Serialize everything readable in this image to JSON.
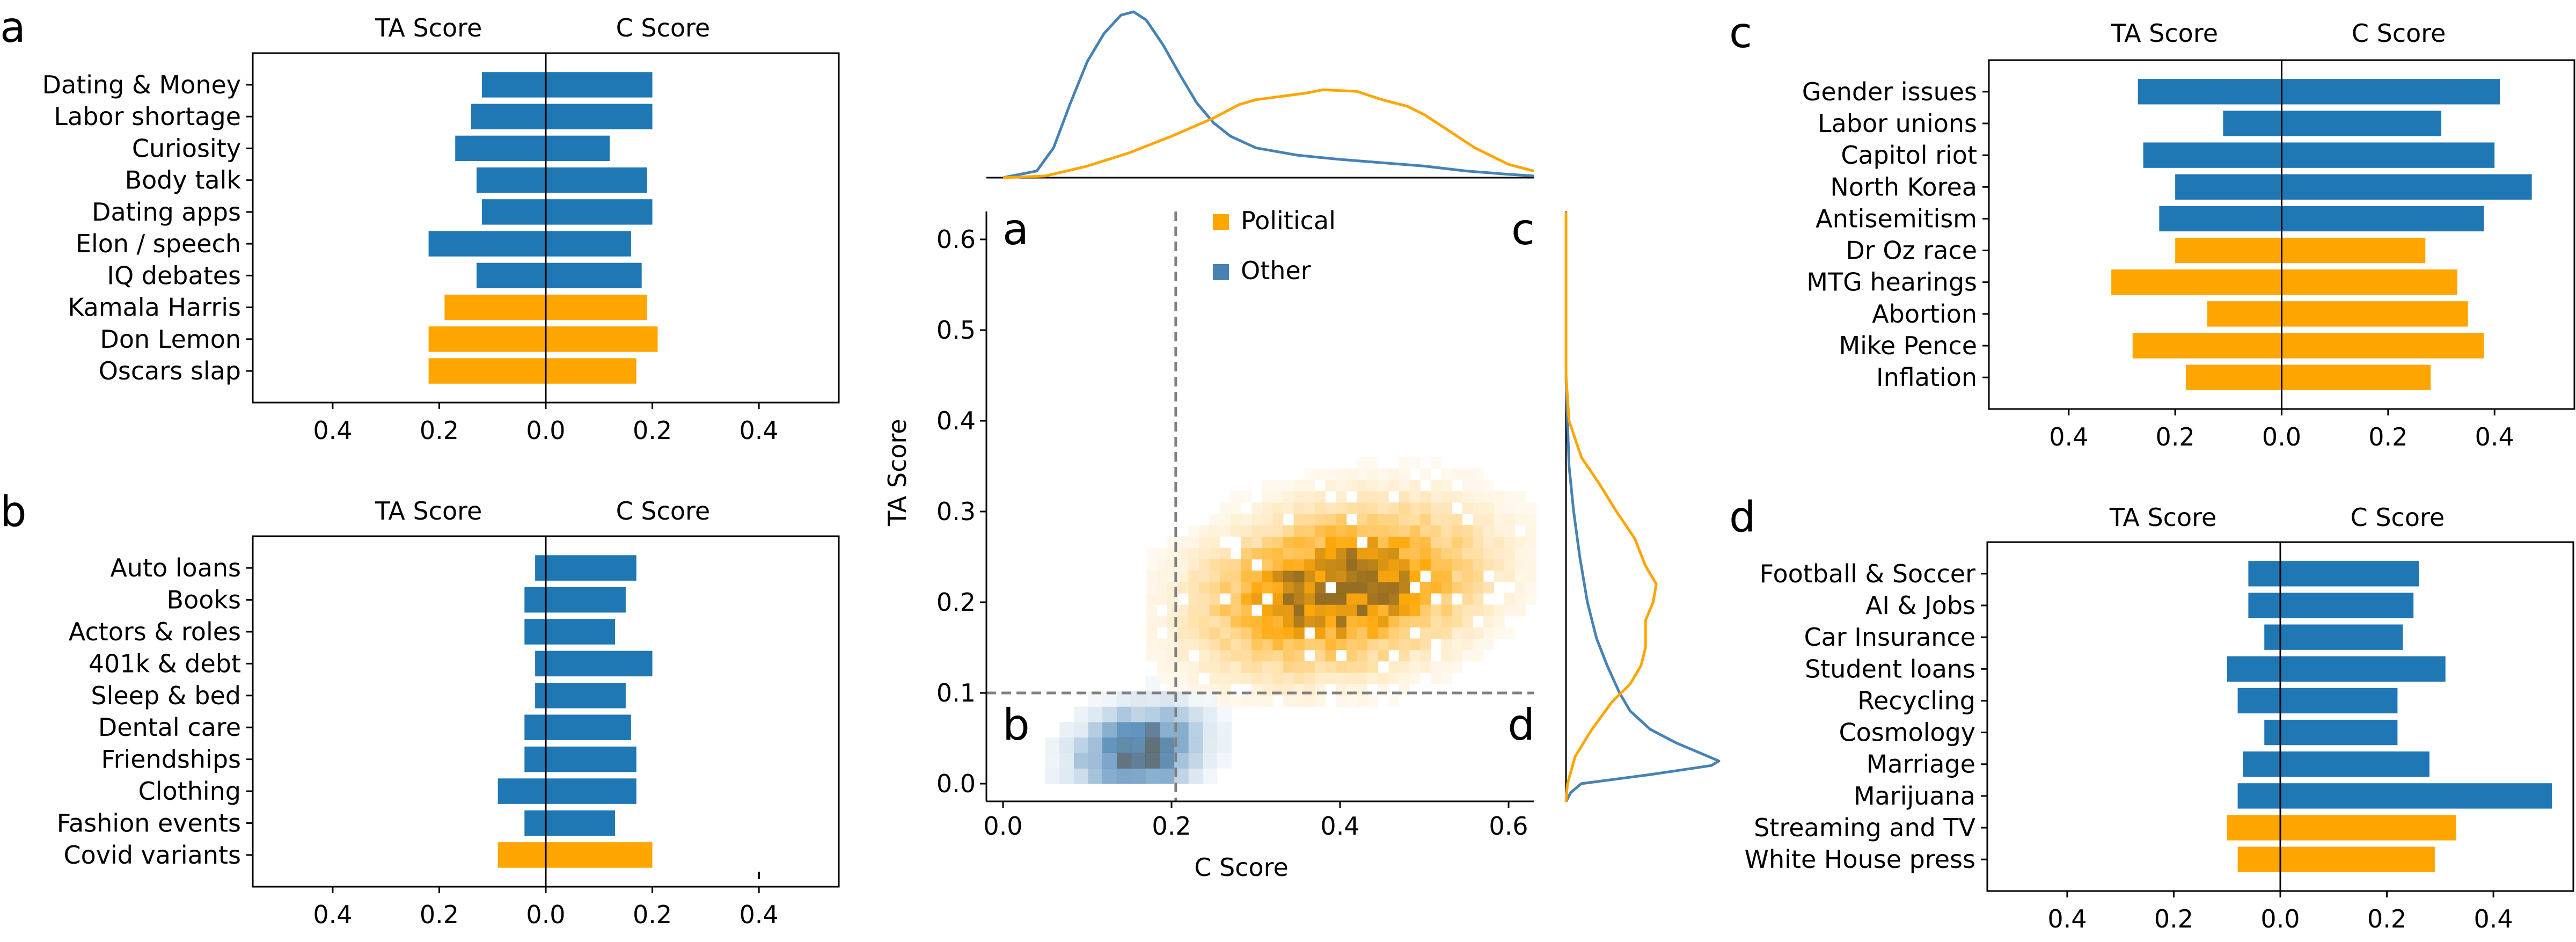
{
  "colors": {
    "political": "#FFA500",
    "other_bar": "#1F77B4",
    "other_kde": "#4682B4",
    "political_kde": "#FFA500",
    "reference_line": "#808080"
  },
  "chart_data": [
    {
      "id": "a",
      "type": "bar",
      "panel_letter": "a",
      "orientation": "horizontal-diverging",
      "left_title": "TA Score",
      "right_title": "C Score",
      "xlim": [
        -0.55,
        0.55
      ],
      "xticks": [
        -0.4,
        -0.2,
        0.0,
        0.2,
        0.4
      ],
      "xtick_labels": [
        "0.4",
        "0.2",
        "0.0",
        "0.2",
        "0.4"
      ],
      "categories": [
        "Dating & Money",
        "Labor shortage",
        "Curiosity",
        "Body talk",
        "Dating apps",
        "Elon / speech",
        "IQ debates",
        "Kamala Harris",
        "Don Lemon",
        "Oscars slap"
      ],
      "group": [
        "Other",
        "Other",
        "Other",
        "Other",
        "Other",
        "Other",
        "Other",
        "Political",
        "Political",
        "Political"
      ],
      "series": [
        {
          "name": "TA Score",
          "values": [
            0.12,
            0.14,
            0.17,
            0.13,
            0.12,
            0.22,
            0.13,
            0.19,
            0.22,
            0.22
          ]
        },
        {
          "name": "C Score",
          "values": [
            0.2,
            0.2,
            0.12,
            0.19,
            0.2,
            0.16,
            0.18,
            0.19,
            0.21,
            0.17
          ]
        }
      ]
    },
    {
      "id": "b",
      "type": "bar",
      "panel_letter": "b",
      "orientation": "horizontal-diverging",
      "left_title": "TA Score",
      "right_title": "C Score",
      "xlim": [
        -0.55,
        0.55
      ],
      "xticks": [
        -0.4,
        -0.2,
        0.0,
        0.2,
        0.4
      ],
      "xtick_labels": [
        "0.4",
        "0.2",
        "0.0",
        "0.2",
        "0.4"
      ],
      "categories": [
        "Auto loans",
        "Books",
        "Actors & roles",
        "401k & debt",
        "Sleep & bed",
        "Dental care",
        "Friendships",
        "Clothing",
        "Fashion events",
        "Covid variants"
      ],
      "group": [
        "Other",
        "Other",
        "Other",
        "Other",
        "Other",
        "Other",
        "Other",
        "Other",
        "Other",
        "Political"
      ],
      "series": [
        {
          "name": "TA Score",
          "values": [
            0.02,
            0.04,
            0.04,
            0.02,
            0.02,
            0.04,
            0.04,
            0.09,
            0.04,
            0.09
          ]
        },
        {
          "name": "C Score",
          "values": [
            0.17,
            0.15,
            0.13,
            0.2,
            0.15,
            0.16,
            0.17,
            0.17,
            0.13,
            0.2
          ]
        }
      ],
      "stray_tick_at": 0.4
    },
    {
      "id": "center",
      "type": "heatmap",
      "xlabel": "C Score",
      "ylabel": "TA Score",
      "xlim": [
        -0.02,
        0.63
      ],
      "ylim": [
        -0.02,
        0.63
      ],
      "xticks": [
        0.0,
        0.2,
        0.4,
        0.6
      ],
      "xtick_labels": [
        "0.0",
        "0.2",
        "0.4",
        "0.6"
      ],
      "yticks": [
        0.0,
        0.1,
        0.2,
        0.3,
        0.4,
        0.5,
        0.6
      ],
      "ytick_labels": [
        "0.0",
        "0.1",
        "0.2",
        "0.3",
        "0.4",
        "0.5",
        "0.6"
      ],
      "thresholds": {
        "c_score": 0.205,
        "ta_score": 0.1
      },
      "quadrant_labels": {
        "top_left": "a",
        "bottom_left": "b",
        "top_right": "c",
        "bottom_right": "d"
      },
      "legend": {
        "placement": "top-center",
        "entries": [
          {
            "label": "Political",
            "group": "Political"
          },
          {
            "label": "Other",
            "group": "Other"
          }
        ]
      },
      "distributions": [
        {
          "name": "Political",
          "c_mean": 0.4,
          "c_sd": 0.1,
          "ta_mean": 0.215,
          "ta_sd": 0.055,
          "correlation": 0.25,
          "c_range": [
            0.17,
            0.62
          ],
          "ta_range": [
            0.085,
            0.37
          ]
        },
        {
          "name": "Other",
          "c_mean": 0.16,
          "c_sd": 0.045,
          "ta_mean": 0.035,
          "ta_sd": 0.03,
          "correlation": 0.2,
          "c_range": [
            0.05,
            0.36
          ],
          "ta_range": [
            0.0,
            0.2
          ]
        }
      ],
      "marginal_top": {
        "axis": "C Score",
        "series": [
          {
            "name": "Other",
            "x": [
              0.0,
              0.04,
              0.06,
              0.08,
              0.1,
              0.12,
              0.14,
              0.155,
              0.17,
              0.19,
              0.21,
              0.23,
              0.25,
              0.27,
              0.3,
              0.35,
              0.4,
              0.45,
              0.5,
              0.55,
              0.6,
              0.63
            ],
            "density": [
              0.0,
              0.04,
              0.18,
              0.45,
              0.7,
              0.87,
              0.98,
              1.0,
              0.95,
              0.8,
              0.62,
              0.45,
              0.33,
              0.25,
              0.18,
              0.135,
              0.11,
              0.09,
              0.07,
              0.04,
              0.02,
              0.01
            ]
          },
          {
            "name": "Political",
            "x": [
              0.0,
              0.05,
              0.1,
              0.15,
              0.2,
              0.25,
              0.28,
              0.3,
              0.33,
              0.36,
              0.38,
              0.42,
              0.45,
              0.48,
              0.5,
              0.53,
              0.56,
              0.6,
              0.63
            ],
            "density": [
              0.0,
              0.01,
              0.07,
              0.15,
              0.25,
              0.36,
              0.44,
              0.47,
              0.49,
              0.51,
              0.53,
              0.52,
              0.47,
              0.43,
              0.38,
              0.28,
              0.18,
              0.08,
              0.04
            ]
          }
        ]
      },
      "marginal_right": {
        "axis": "TA Score",
        "series": [
          {
            "name": "Other",
            "y": [
              -0.02,
              -0.01,
              0.0,
              0.01,
              0.02,
              0.025,
              0.03,
              0.045,
              0.06,
              0.08,
              0.1,
              0.13,
              0.16,
              0.2,
              0.25,
              0.3,
              0.35,
              0.4,
              0.45,
              0.63
            ],
            "density": [
              0.0,
              0.03,
              0.1,
              0.55,
              0.95,
              1.0,
              0.93,
              0.72,
              0.55,
              0.42,
              0.35,
              0.27,
              0.2,
              0.14,
              0.09,
              0.05,
              0.02,
              0.01,
              0.0,
              0.0
            ]
          },
          {
            "name": "Political",
            "y": [
              -0.02,
              0.0,
              0.03,
              0.06,
              0.09,
              0.11,
              0.13,
              0.15,
              0.18,
              0.2,
              0.22,
              0.24,
              0.27,
              0.3,
              0.33,
              0.36,
              0.4,
              0.45,
              0.63
            ],
            "density": [
              0.0,
              0.01,
              0.06,
              0.17,
              0.3,
              0.42,
              0.49,
              0.52,
              0.52,
              0.57,
              0.59,
              0.52,
              0.45,
              0.33,
              0.22,
              0.1,
              0.02,
              0.0,
              0.0
            ]
          }
        ]
      }
    },
    {
      "id": "c",
      "type": "bar",
      "panel_letter": "c",
      "orientation": "horizontal-diverging",
      "left_title": "TA Score",
      "right_title": "C Score",
      "xlim": [
        -0.55,
        0.55
      ],
      "xticks": [
        -0.4,
        -0.2,
        0.0,
        0.2,
        0.4
      ],
      "xtick_labels": [
        "0.4",
        "0.2",
        "0.0",
        "0.2",
        "0.4"
      ],
      "categories": [
        "Gender issues",
        "Labor unions",
        "Capitol riot",
        "North Korea",
        "Antisemitism",
        "Dr Oz race",
        "MTG hearings",
        "Abortion",
        "Mike Pence",
        "Inflation"
      ],
      "group": [
        "Other",
        "Other",
        "Other",
        "Other",
        "Other",
        "Political",
        "Political",
        "Political",
        "Political",
        "Political"
      ],
      "series": [
        {
          "name": "TA Score",
          "values": [
            0.27,
            0.11,
            0.26,
            0.2,
            0.23,
            0.2,
            0.32,
            0.14,
            0.28,
            0.18
          ]
        },
        {
          "name": "C Score",
          "values": [
            0.41,
            0.3,
            0.4,
            0.47,
            0.38,
            0.27,
            0.33,
            0.35,
            0.38,
            0.28
          ]
        }
      ]
    },
    {
      "id": "d",
      "type": "bar",
      "panel_letter": "d",
      "orientation": "horizontal-diverging",
      "left_title": "TA Score",
      "right_title": "C Score",
      "xlim": [
        -0.55,
        0.55
      ],
      "xticks": [
        -0.4,
        -0.2,
        0.0,
        0.2,
        0.4
      ],
      "xtick_labels": [
        "0.4",
        "0.2",
        "0.0",
        "0.2",
        "0.4"
      ],
      "categories": [
        "Football & Soccer",
        "AI & Jobs",
        "Car Insurance",
        "Student loans",
        "Recycling",
        "Cosmology",
        "Marriage",
        "Marijuana",
        "Streaming and TV",
        "White House press"
      ],
      "group": [
        "Other",
        "Other",
        "Other",
        "Other",
        "Other",
        "Other",
        "Other",
        "Other",
        "Political",
        "Political"
      ],
      "series": [
        {
          "name": "TA Score",
          "values": [
            0.06,
            0.06,
            0.03,
            0.1,
            0.08,
            0.03,
            0.07,
            0.08,
            0.1,
            0.08
          ]
        },
        {
          "name": "C Score",
          "values": [
            0.26,
            0.25,
            0.23,
            0.31,
            0.22,
            0.22,
            0.28,
            0.51,
            0.33,
            0.29
          ]
        }
      ]
    }
  ]
}
